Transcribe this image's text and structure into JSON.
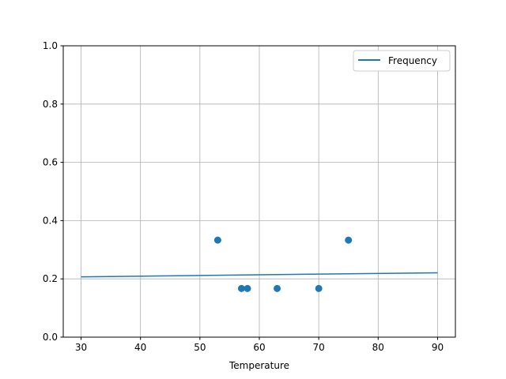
{
  "chart_data": {
    "type": "scatter",
    "title": "",
    "xlabel": "Temperature",
    "ylabel": "",
    "xlim": [
      27,
      93
    ],
    "ylim": [
      0,
      1
    ],
    "xticks": [
      30,
      40,
      50,
      60,
      70,
      80,
      90
    ],
    "yticks": [
      0.0,
      0.2,
      0.4,
      0.6,
      0.8,
      1.0
    ],
    "xtick_labels": [
      "30",
      "40",
      "50",
      "60",
      "70",
      "80",
      "90"
    ],
    "ytick_labels": [
      "0.0",
      "0.2",
      "0.4",
      "0.6",
      "0.8",
      "1.0"
    ],
    "grid": true,
    "legend_placement": "top-right",
    "color": "#1f77b4",
    "line_series": {
      "name": "Frequency",
      "x": [
        30,
        90
      ],
      "y": [
        0.207,
        0.221
      ]
    },
    "scatter_points": {
      "x": [
        53,
        57,
        58,
        63,
        70,
        75
      ],
      "y": [
        0.333,
        0.167,
        0.167,
        0.167,
        0.167,
        0.333
      ]
    }
  }
}
